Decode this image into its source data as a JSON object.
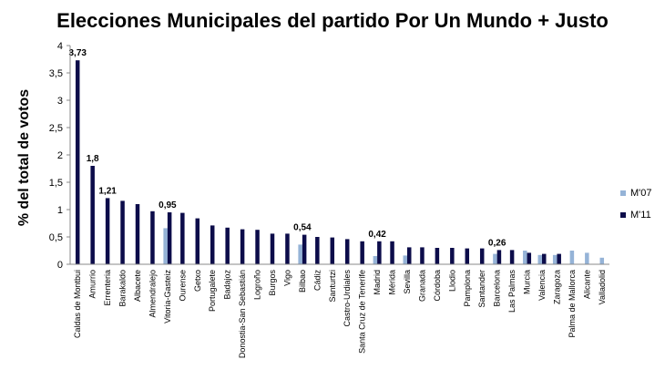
{
  "chart_data": {
    "type": "bar",
    "title": "Elecciones Municipales del partido Por Un Mundo + Justo",
    "xlabel": "",
    "ylabel": "% del total de votos",
    "ylim": [
      0,
      4
    ],
    "yticks": [
      "0",
      "0,5",
      "1",
      "1,5",
      "2",
      "2,5",
      "3",
      "3,5",
      "4"
    ],
    "grid": false,
    "legend_position": "right",
    "categories": [
      "Caldas de Montbui",
      "Amurrio",
      "Errenteria",
      "Barakaldo",
      "Albacete",
      "Almendralejo",
      "Vitoria-Gasteiz",
      "Ourense",
      "Getxo",
      "Portugalete",
      "Badajoz",
      "Donostia-San Sebastián",
      "Logroño",
      "Burgos",
      "Vigo",
      "Bilbao",
      "Cádiz",
      "Santurtzi",
      "Castro-Urdiales",
      "Santa Cruz de Tenerife",
      "Madrid",
      "Mérida",
      "Sevilla",
      "Granada",
      "Córdoba",
      "Llodio",
      "Pamplona",
      "Santander",
      "Barcelona",
      "Las Palmas",
      "Murcia",
      "Valencia",
      "Zaragoza",
      "Palma de Mallorca",
      "Alicante",
      "Valladolid"
    ],
    "series": [
      {
        "name": "M'07",
        "color": "#95b3d7",
        "values": [
          null,
          null,
          null,
          null,
          null,
          null,
          0.66,
          null,
          null,
          null,
          null,
          null,
          null,
          null,
          null,
          0.36,
          null,
          null,
          null,
          null,
          0.15,
          null,
          0.16,
          null,
          null,
          null,
          null,
          null,
          0.19,
          null,
          0.25,
          0.17,
          0.17,
          0.25,
          0.21,
          0.12
        ]
      },
      {
        "name": "M'11",
        "color": "#0c0c4a",
        "values": [
          3.73,
          1.8,
          1.21,
          1.16,
          1.1,
          0.97,
          0.95,
          0.94,
          0.84,
          0.71,
          0.67,
          0.64,
          0.63,
          0.56,
          0.56,
          0.54,
          0.5,
          0.49,
          0.46,
          0.42,
          0.42,
          0.42,
          0.31,
          0.31,
          0.3,
          0.3,
          0.29,
          0.29,
          0.26,
          0.26,
          0.21,
          0.19,
          0.19,
          null,
          null,
          null
        ]
      }
    ],
    "data_labels": [
      {
        "category": "Caldas de Montbui",
        "text": "3,73"
      },
      {
        "category": "Amurrio",
        "text": "1,8"
      },
      {
        "category": "Errenteria",
        "text": "1,21"
      },
      {
        "category": "Vitoria-Gasteiz",
        "text": "0,95"
      },
      {
        "category": "Bilbao",
        "text": "0,54"
      },
      {
        "category": "Madrid",
        "text": "0,42"
      },
      {
        "category": "Barcelona",
        "text": "0,26"
      }
    ]
  }
}
